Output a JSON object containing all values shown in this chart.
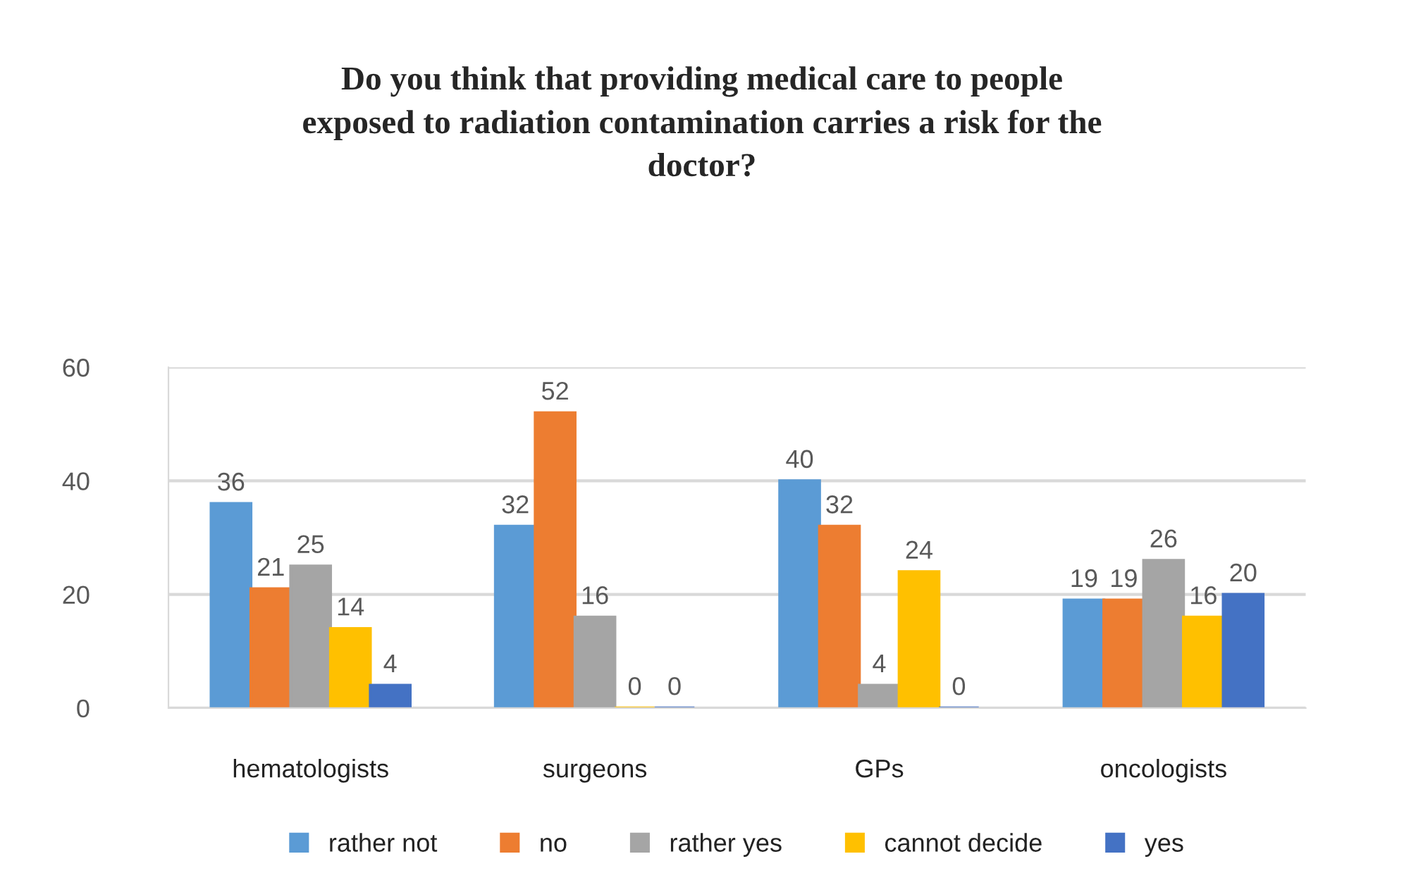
{
  "chart_data": {
    "type": "bar",
    "title": "Do you think that providing medical care to people\nexposed to radiation contamination carries a risk for the\ndoctor?",
    "categories": [
      "hematologists",
      "surgeons",
      "GPs",
      "oncologists"
    ],
    "series": [
      {
        "name": "rather not",
        "color": "#5b9bd5",
        "values": [
          36,
          32,
          40,
          19
        ]
      },
      {
        "name": "no",
        "color": "#ed7d31",
        "values": [
          21,
          52,
          32,
          19
        ]
      },
      {
        "name": "rather yes",
        "color": "#a5a5a5",
        "values": [
          25,
          16,
          4,
          26
        ]
      },
      {
        "name": "cannot decide",
        "color": "#ffc000",
        "values": [
          14,
          0,
          24,
          16
        ]
      },
      {
        "name": "yes",
        "color": "#4472c4",
        "values": [
          4,
          0,
          0,
          20
        ]
      }
    ],
    "ylim": [
      0,
      60
    ],
    "yticks": [
      0,
      20,
      40,
      60
    ],
    "grid": "y",
    "legend": "bottom",
    "data_labels": true
  }
}
